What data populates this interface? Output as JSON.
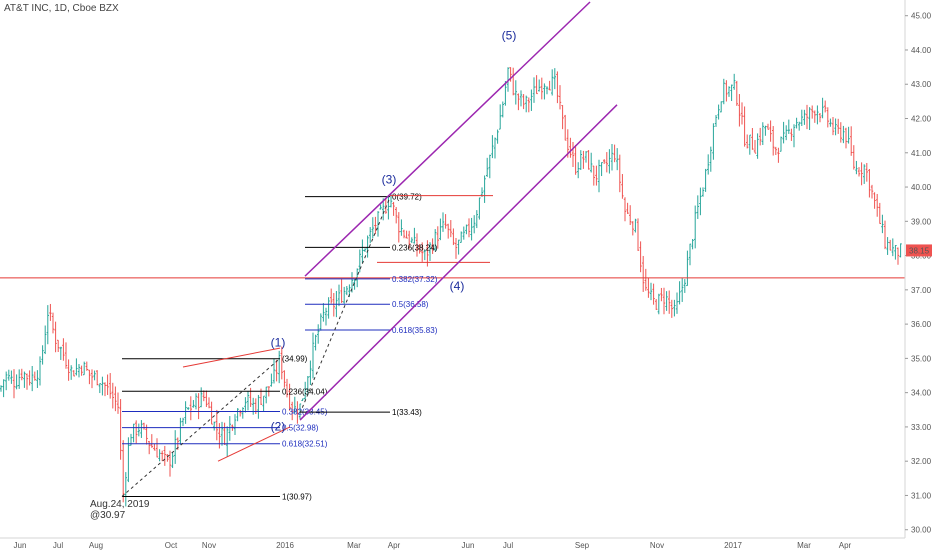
{
  "header": {
    "title": "AT&T INC, 1D, Cboe BZX"
  },
  "price_tag": "38.15",
  "colors": {
    "up": "#26a69a",
    "down": "#ef5350",
    "channel": "#9c27b0",
    "fib_black": "#000000",
    "fib_blue": "#1e2dbe",
    "support": "#e53935",
    "wave": "#1a2b9c"
  },
  "chart_data": {
    "type": "ohlc",
    "title": "AT&T INC, 1D, Cboe BZX",
    "y_ticks": [
      "45.00",
      "44.00",
      "43.00",
      "42.00",
      "41.00",
      "40.00",
      "39.00",
      "38.00",
      "37.00",
      "36.00",
      "35.00",
      "34.00",
      "33.00",
      "32.00",
      "31.00",
      "30.00"
    ],
    "x_ticks": [
      "Jun",
      "Jul",
      "Aug",
      "Oct",
      "Nov",
      "2016",
      "Mar",
      "Apr",
      "Jun",
      "Jul",
      "Sep",
      "Nov",
      "2017",
      "Mar",
      "Apr"
    ],
    "ylim": [
      29.7,
      45.4
    ],
    "current_price": 38.15,
    "horizontal_support": 37.35,
    "price_path": [
      {
        "t": 0,
        "p": 34.1
      },
      {
        "t": 5,
        "p": 34.5
      },
      {
        "t": 15,
        "p": 34.3
      },
      {
        "t": 22,
        "p": 34.6
      },
      {
        "t": 30,
        "p": 34.4
      },
      {
        "t": 40,
        "p": 34.7
      },
      {
        "t": 48,
        "p": 36.4
      },
      {
        "t": 55,
        "p": 35.6
      },
      {
        "t": 62,
        "p": 35.2
      },
      {
        "t": 72,
        "p": 34.6
      },
      {
        "t": 82,
        "p": 34.8
      },
      {
        "t": 90,
        "p": 34.5
      },
      {
        "t": 100,
        "p": 34.4
      },
      {
        "t": 110,
        "p": 34.0
      },
      {
        "t": 118,
        "p": 33.6
      },
      {
        "t": 123,
        "p": 31.0
      },
      {
        "t": 130,
        "p": 32.8
      },
      {
        "t": 140,
        "p": 33.0
      },
      {
        "t": 150,
        "p": 32.5
      },
      {
        "t": 160,
        "p": 32.2
      },
      {
        "t": 168,
        "p": 31.9
      },
      {
        "t": 176,
        "p": 32.5
      },
      {
        "t": 185,
        "p": 33.4
      },
      {
        "t": 195,
        "p": 33.7
      },
      {
        "t": 205,
        "p": 33.9
      },
      {
        "t": 215,
        "p": 33.0
      },
      {
        "t": 225,
        "p": 32.7
      },
      {
        "t": 235,
        "p": 33.4
      },
      {
        "t": 245,
        "p": 33.8
      },
      {
        "t": 255,
        "p": 33.6
      },
      {
        "t": 265,
        "p": 34.0
      },
      {
        "t": 275,
        "p": 34.5
      },
      {
        "t": 280,
        "p": 35.0
      },
      {
        "t": 287,
        "p": 34.0
      },
      {
        "t": 293,
        "p": 33.5
      },
      {
        "t": 300,
        "p": 33.6
      },
      {
        "t": 305,
        "p": 34.2
      },
      {
        "t": 315,
        "p": 35.5
      },
      {
        "t": 325,
        "p": 36.4
      },
      {
        "t": 335,
        "p": 36.6
      },
      {
        "t": 345,
        "p": 37.0
      },
      {
        "t": 355,
        "p": 37.5
      },
      {
        "t": 365,
        "p": 38.3
      },
      {
        "t": 375,
        "p": 38.9
      },
      {
        "t": 385,
        "p": 39.4
      },
      {
        "t": 390,
        "p": 39.7
      },
      {
        "t": 398,
        "p": 38.9
      },
      {
        "t": 408,
        "p": 38.5
      },
      {
        "t": 418,
        "p": 38.2
      },
      {
        "t": 425,
        "p": 38.0
      },
      {
        "t": 435,
        "p": 38.5
      },
      {
        "t": 445,
        "p": 38.9
      },
      {
        "t": 455,
        "p": 38.2
      },
      {
        "t": 465,
        "p": 38.6
      },
      {
        "t": 475,
        "p": 39.1
      },
      {
        "t": 485,
        "p": 40.3
      },
      {
        "t": 495,
        "p": 41.4
      },
      {
        "t": 502,
        "p": 42.3
      },
      {
        "t": 508,
        "p": 43.4
      },
      {
        "t": 515,
        "p": 42.7
      },
      {
        "t": 525,
        "p": 42.4
      },
      {
        "t": 535,
        "p": 42.8
      },
      {
        "t": 545,
        "p": 43.1
      },
      {
        "t": 555,
        "p": 43.0
      },
      {
        "t": 565,
        "p": 41.5
      },
      {
        "t": 575,
        "p": 40.6
      },
      {
        "t": 585,
        "p": 40.9
      },
      {
        "t": 595,
        "p": 40.3
      },
      {
        "t": 605,
        "p": 40.6
      },
      {
        "t": 615,
        "p": 41.0
      },
      {
        "t": 625,
        "p": 39.3
      },
      {
        "t": 635,
        "p": 38.9
      },
      {
        "t": 645,
        "p": 37.0
      },
      {
        "t": 655,
        "p": 36.6
      },
      {
        "t": 665,
        "p": 36.8
      },
      {
        "t": 675,
        "p": 36.3
      },
      {
        "t": 685,
        "p": 37.4
      },
      {
        "t": 695,
        "p": 39.0
      },
      {
        "t": 705,
        "p": 40.3
      },
      {
        "t": 715,
        "p": 42.0
      },
      {
        "t": 722,
        "p": 42.8
      },
      {
        "t": 735,
        "p": 42.9
      },
      {
        "t": 745,
        "p": 41.4
      },
      {
        "t": 755,
        "p": 41.2
      },
      {
        "t": 765,
        "p": 41.8
      },
      {
        "t": 775,
        "p": 41.1
      },
      {
        "t": 785,
        "p": 41.4
      },
      {
        "t": 795,
        "p": 41.9
      },
      {
        "t": 805,
        "p": 42.0
      },
      {
        "t": 815,
        "p": 42.3
      },
      {
        "t": 825,
        "p": 42.1
      },
      {
        "t": 835,
        "p": 41.6
      },
      {
        "t": 845,
        "p": 41.6
      },
      {
        "t": 855,
        "p": 40.5
      },
      {
        "t": 865,
        "p": 40.6
      },
      {
        "t": 875,
        "p": 39.5
      },
      {
        "t": 885,
        "p": 38.4
      },
      {
        "t": 895,
        "p": 38.1
      },
      {
        "t": 905,
        "p": 38.15
      }
    ],
    "fib_set_1": {
      "levels": [
        {
          "label": "(34.99)",
          "price": 34.99,
          "color": "black"
        },
        {
          "label": "0.236(34.04)",
          "price": 34.04,
          "color": "black"
        },
        {
          "label": "0.382(33.45)",
          "price": 33.45,
          "color": "blue"
        },
        {
          "label": "0.5(32.98)",
          "price": 32.98,
          "color": "blue"
        },
        {
          "label": "0.618(32.51)",
          "price": 32.51,
          "color": "blue"
        },
        {
          "label": "1(30.97)",
          "price": 30.97,
          "color": "black"
        }
      ]
    },
    "fib_set_2": {
      "levels": [
        {
          "label": "0(39.72)",
          "price": 39.72,
          "color": "black"
        },
        {
          "label": "0.236(38.24)",
          "price": 38.24,
          "color": "black"
        },
        {
          "label": "0.382(37.32)",
          "price": 37.32,
          "color": "blue"
        },
        {
          "label": "0.5(36.58)",
          "price": 36.58,
          "color": "blue"
        },
        {
          "label": "0.618(35.83)",
          "price": 35.83,
          "color": "blue"
        },
        {
          "label": "1(33.43)",
          "price": 33.43,
          "color": "black"
        }
      ]
    },
    "wave_labels": [
      "(1)",
      "(2)",
      "(3)",
      "(4)",
      "(5)"
    ],
    "annotation": {
      "line1": "Aug.24, 2019",
      "line2": "@30.97"
    }
  }
}
